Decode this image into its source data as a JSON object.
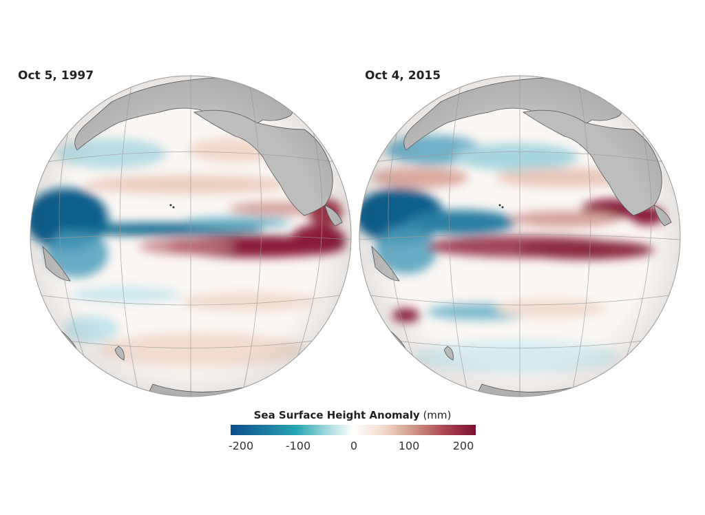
{
  "panels": [
    {
      "title": "Oct 5, 1997"
    },
    {
      "title": "Oct 4, 2015"
    }
  ],
  "legend": {
    "title": "Sea Surface Height Anomaly",
    "unit": "(mm)",
    "ticks": [
      "-200",
      "-100",
      "0",
      "100",
      "200"
    ],
    "range": [
      -200,
      200
    ],
    "colors": [
      "#0a4f8a",
      "#28a6b2",
      "#ffffff",
      "#d3a08f",
      "#7a1030"
    ]
  },
  "colors": {
    "land": "#bdbdbd",
    "ocean": "#fbf7f4",
    "positive_anomaly": "#8e1e3a",
    "negative_anomaly": "#0e5f8c"
  }
}
